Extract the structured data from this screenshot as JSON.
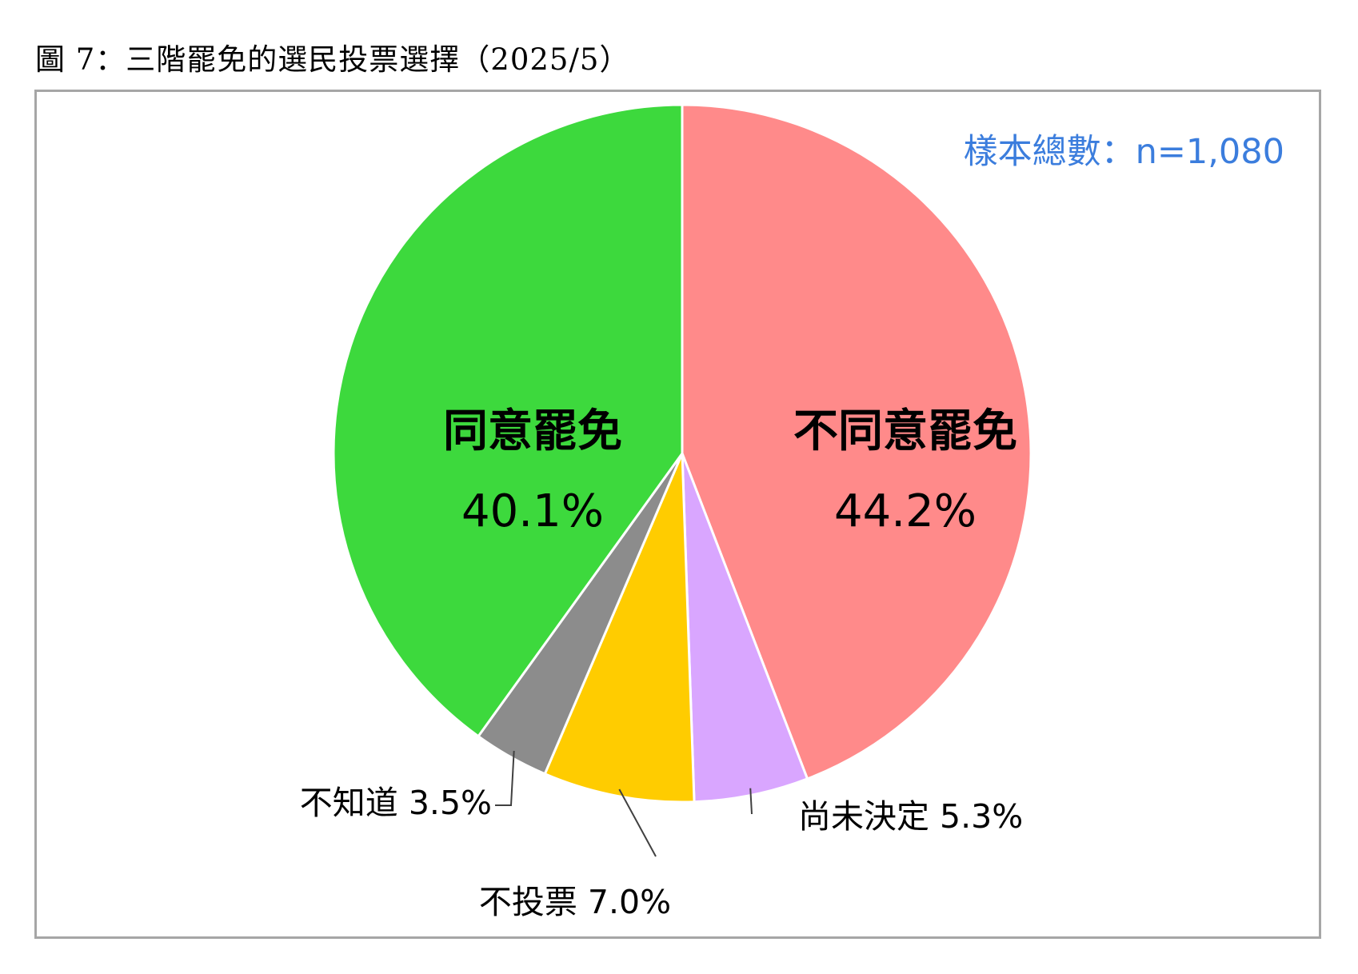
{
  "figure": {
    "title": "圖 7：三階罷免的選民投票選擇（2025/5）",
    "sample_note": "樣本總數：n=1,080"
  },
  "chart_data": {
    "type": "pie",
    "start_angle_deg": 0,
    "direction": "clockwise",
    "slices": [
      {
        "label": "不同意罷免",
        "value": 44.2,
        "display": "44.2%",
        "color": "#ff8a8a"
      },
      {
        "label": "尚未決定",
        "value": 5.3,
        "display": "5.3%",
        "color": "#d9a6ff"
      },
      {
        "label": "不投票",
        "value": 7.0,
        "display": "7.0%",
        "color": "#ffcc00"
      },
      {
        "label": "不知道",
        "value": 3.5,
        "display": "3.5%",
        "color": "#8c8c8c"
      },
      {
        "label": "同意罷免",
        "value": 40.1,
        "display": "40.1%",
        "color": "#3dd93d"
      }
    ]
  }
}
